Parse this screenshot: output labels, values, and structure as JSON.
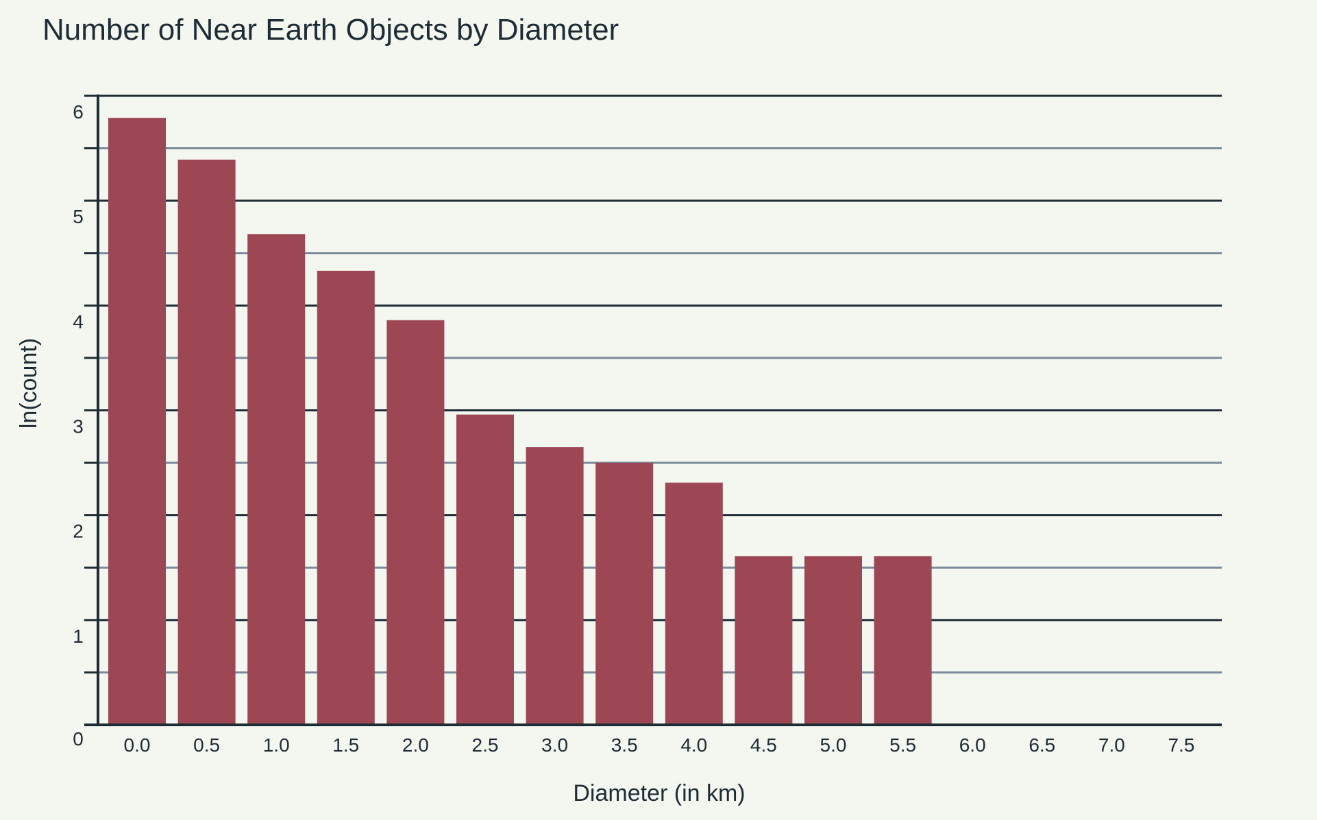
{
  "chart_data": {
    "type": "bar",
    "title": "Number of Near Earth Objects by Diameter",
    "xlabel": "Diameter (in km)",
    "ylabel": "ln(count)",
    "categories": [
      "0.0",
      "0.5",
      "1.0",
      "1.5",
      "2.0",
      "2.5",
      "3.0",
      "3.5",
      "4.0",
      "4.5",
      "5.0",
      "5.5",
      "6.0",
      "6.5",
      "7.0",
      "7.5"
    ],
    "values": [
      5.79,
      5.39,
      4.68,
      4.33,
      3.86,
      2.96,
      2.65,
      2.5,
      2.31,
      1.61,
      1.61,
      1.61,
      0,
      0,
      0,
      0
    ],
    "ylim": [
      0,
      6
    ],
    "yticks": [
      "0",
      "1",
      "2",
      "3",
      "4",
      "5",
      "6"
    ],
    "grid": true,
    "bar_color": "#9d4755",
    "major_grid_color": "#1e2d35",
    "minor_grid_color": "#7a8b99"
  }
}
